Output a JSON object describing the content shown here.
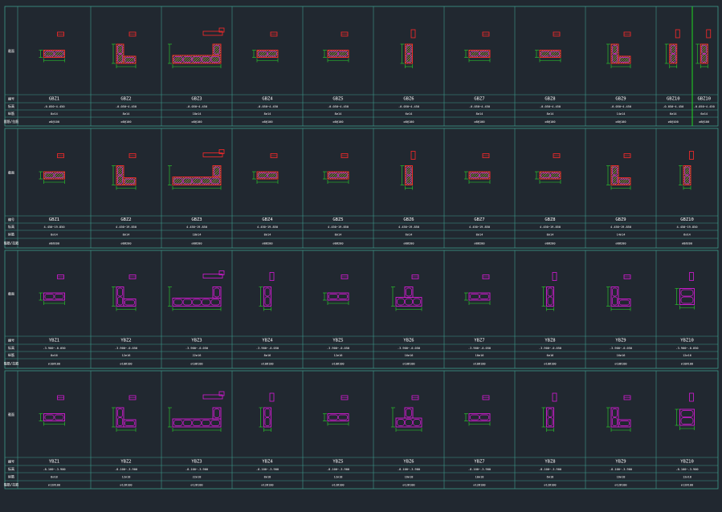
{
  "colors": {
    "background": "#212830",
    "grid": "#3f9a8c",
    "column_outline": "#ff2a2a",
    "hatch": "#ffe24a",
    "rebar": "#d61ad6",
    "dimension": "#2bd62b",
    "highlight_line": "#1fd81f",
    "text": "#ffffff"
  },
  "row_labels": [
    "截面",
    "编号",
    "标高",
    "纵筋",
    "箍筋/拉筋"
  ],
  "panels": [
    {
      "ids": [
        "GBZ1",
        "GBZ2",
        "GBZ3",
        "GBZ4",
        "GBZ5",
        "GBZ6",
        "GBZ7",
        "GBZ8",
        "GBZ9",
        "GBZ10",
        "GBZ10"
      ],
      "elev": [
        "-0.050~4.450",
        "-0.050~4.450",
        "-0.050~4.450",
        "-0.050~4.450",
        "-0.050~4.450",
        "-0.050~4.450",
        "-0.050~4.450",
        "-0.050~4.450",
        "-0.050~4.450",
        "-0.050~4.450",
        "-0.050~4.450"
      ],
      "bars": [
        "8⌀14",
        "8⌀14",
        "18⌀14",
        "8⌀14",
        "8⌀14",
        "6⌀14",
        "8⌀14",
        "8⌀14",
        "14⌀14",
        "6⌀14",
        "6⌀14"
      ],
      "ties": [
        "⌀8@100",
        "⌀8@100",
        "⌀8@100",
        "⌀8@100",
        "⌀8@100",
        "⌀8@100",
        "⌀8@100",
        "⌀8@100",
        "⌀8@100",
        "⌀8@100",
        "⌀8@100"
      ]
    },
    {
      "ids": [
        "GBZ1",
        "GBZ2",
        "GBZ3",
        "GBZ4",
        "GBZ5",
        "GBZ6",
        "GBZ7",
        "GBZ8",
        "GBZ9",
        "GBZ10"
      ],
      "elev": [
        "4.450~19.850",
        "4.450~19.850",
        "4.450~19.850",
        "4.450~19.850",
        "4.450~19.850",
        "4.450~19.850",
        "4.450~19.850",
        "4.450~19.850",
        "4.450~19.850",
        "4.450~19.850"
      ],
      "bars": [
        "8⌀14",
        "8⌀14",
        "18⌀14",
        "8⌀14",
        "8⌀14",
        "6⌀14",
        "8⌀14",
        "8⌀14",
        "14⌀14",
        "6⌀14"
      ],
      "ties": [
        "⌀8@200",
        "⌀8@200",
        "⌀8@200",
        "⌀8@200",
        "⌀8@200",
        "⌀8@200",
        "⌀8@200",
        "⌀8@200",
        "⌀8@200",
        "⌀8@200"
      ]
    },
    {
      "ids": [
        "YBZ1",
        "YBZ2",
        "YBZ3",
        "YBZ4",
        "YBZ5",
        "YBZ6",
        "YBZ7",
        "YBZ8",
        "YBZ9",
        "YBZ10"
      ],
      "elev": [
        "-3.900~-0.050",
        "-3.900~-0.050",
        "-3.900~-0.050",
        "-3.900~-0.050",
        "-3.900~-0.050",
        "-3.900~-0.050",
        "-3.900~-0.050",
        "-3.900~-0.050",
        "-3.900~-0.050",
        "-3.900~-0.050"
      ],
      "bars": [
        "8⌀16",
        "12⌀16",
        "22⌀16",
        "8⌀16",
        "12⌀16",
        "16⌀16",
        "10⌀16",
        "6⌀16",
        "16⌀16",
        "12⌀16"
      ],
      "ties": [
        "⌀10@100",
        "⌀10@100",
        "⌀10@100",
        "⌀10@100",
        "⌀10@100",
        "⌀10@100",
        "⌀10@100",
        "⌀10@100",
        "⌀10@100",
        "⌀10@100"
      ]
    },
    {
      "ids": [
        "YBZ1",
        "YBZ2",
        "YBZ3",
        "YBZ4",
        "YBZ5",
        "YBZ6",
        "YBZ7",
        "YBZ8",
        "YBZ9",
        "YBZ10"
      ],
      "elev": [
        "-8.100~-3.900",
        "-8.100~-3.900",
        "-8.100~-3.900",
        "-8.100~-3.900",
        "-8.100~-3.900",
        "-8.100~-3.900",
        "-8.100~-3.900",
        "-8.100~-3.900",
        "-8.100~-3.900",
        "-8.100~-3.900"
      ],
      "bars": [
        "8⌀18",
        "12⌀18",
        "22⌀18",
        "8⌀18",
        "12⌀18",
        "16⌀18",
        "10⌀18",
        "6⌀18",
        "16⌀18",
        "12⌀18"
      ],
      "ties": [
        "⌀12@100",
        "⌀12@100",
        "⌀12@100",
        "⌀12@100",
        "⌀12@100",
        "⌀12@100",
        "⌀12@100",
        "⌀12@100",
        "⌀12@100",
        "⌀12@100"
      ]
    }
  ]
}
